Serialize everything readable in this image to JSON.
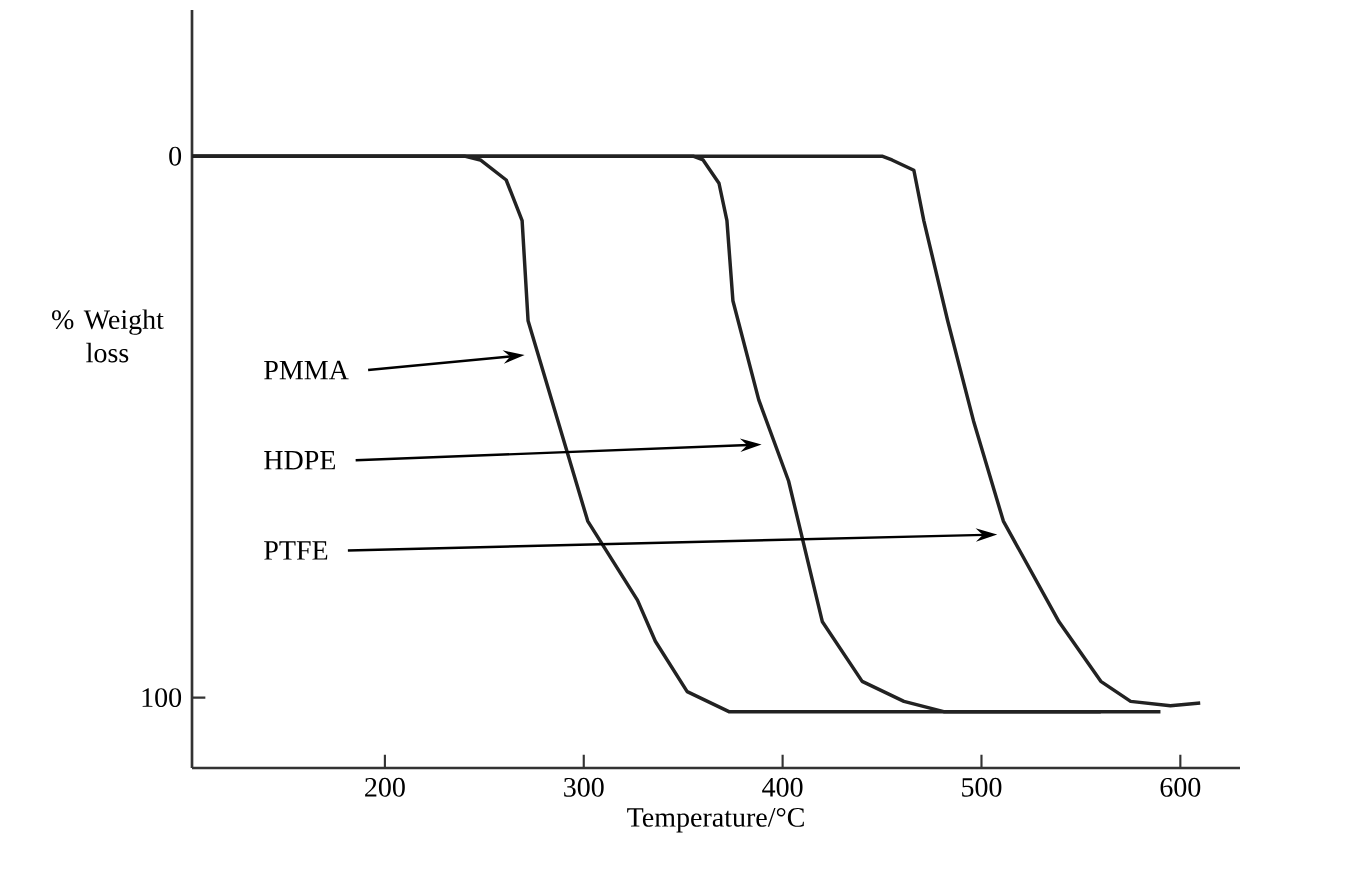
{
  "chart_data": {
    "type": "line",
    "xlabel": "Temperature/°C",
    "ylabel": "% Weight loss",
    "xlim": [
      103,
      630
    ],
    "ylim": [
      113,
      -27
    ],
    "xticks": [
      200,
      300,
      400,
      500,
      600
    ],
    "yticks": [
      0,
      100
    ],
    "grid": false,
    "series": [
      {
        "color": "#222222",
        "x": [
          103,
          240,
          248,
          261,
          267,
          269,
          272,
          287,
          302,
          327,
          336,
          352,
          373,
          560
        ],
        "values": [
          0,
          0,
          0.7,
          4.4,
          10,
          11.9,
          30.4,
          48.9,
          67.4,
          82,
          89.6,
          98.9,
          102.6,
          102.6
        ]
      },
      {
        "color": "#222222",
        "x": [
          103,
          355,
          360,
          368,
          372,
          375,
          388,
          403,
          420,
          440,
          461,
          481,
          590
        ],
        "values": [
          0,
          0,
          0.7,
          5,
          11.9,
          26.7,
          45,
          60,
          86,
          97,
          100.7,
          102.6,
          102.6
        ]
      },
      {
        "color": "#222222",
        "x": [
          103,
          450,
          455,
          466,
          471,
          483,
          496,
          511,
          539,
          560,
          575,
          595,
          610
        ],
        "values": [
          0,
          0,
          0.7,
          2.6,
          11.9,
          30.4,
          48.9,
          67.4,
          86,
          97,
          100.7,
          101.5,
          101
        ]
      }
    ],
    "annotations": [
      "PMMA",
      "HDPE",
      "PTFE"
    ]
  }
}
